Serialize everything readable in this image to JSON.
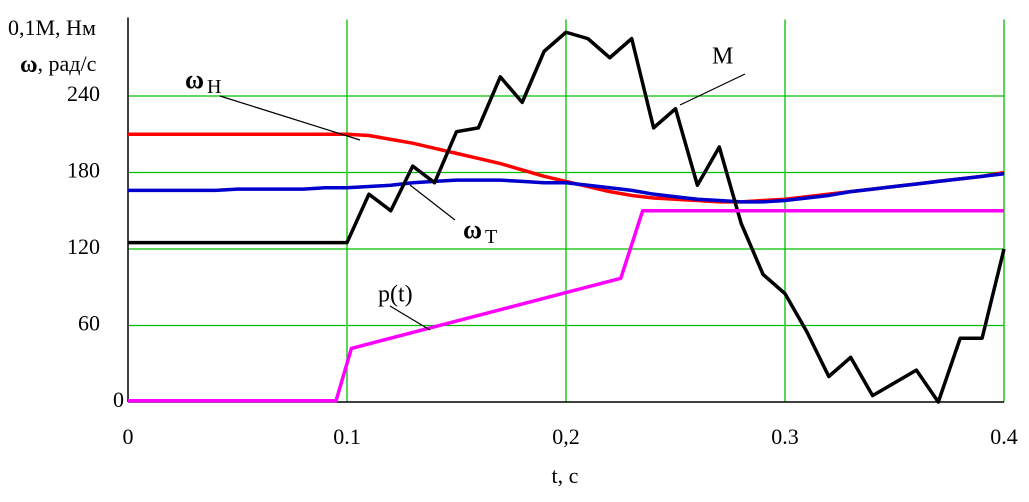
{
  "chart_data": {
    "type": "line",
    "x_label": "t, c",
    "y_label_lines": [
      "0,1M, Hм",
      {
        "symbol": "ω",
        "text": ", рад/с"
      }
    ],
    "x": [
      0,
      0.01,
      0.02,
      0.03,
      0.04,
      0.05,
      0.06,
      0.07,
      0.08,
      0.09,
      0.1,
      0.11,
      0.12,
      0.13,
      0.14,
      0.15,
      0.16,
      0.17,
      0.18,
      0.19,
      0.2,
      0.21,
      0.22,
      0.23,
      0.24,
      0.25,
      0.26,
      0.27,
      0.28,
      0.29,
      0.3,
      0.31,
      0.32,
      0.33,
      0.34,
      0.35,
      0.36,
      0.37,
      0.38,
      0.39,
      0.4
    ],
    "series": [
      {
        "name": "ω_H",
        "color": "#ff0000",
        "values": [
          210,
          210,
          210,
          210,
          210,
          210,
          210,
          210,
          210,
          210,
          210,
          209,
          206,
          203,
          199,
          195,
          191,
          187,
          182,
          177,
          173,
          169,
          165,
          162,
          160,
          159,
          158,
          157,
          157,
          158,
          159,
          161,
          163,
          165,
          167,
          169,
          171,
          173,
          175,
          177,
          180
        ]
      },
      {
        "name": "ω_T",
        "color": "#0000cc",
        "values": [
          166,
          166,
          166,
          166,
          166,
          167,
          167,
          167,
          167,
          168,
          168,
          169,
          170,
          172,
          173,
          174,
          174,
          174,
          173,
          172,
          172,
          170,
          168,
          166,
          163,
          161,
          159,
          158,
          157,
          157,
          158,
          160,
          162,
          165,
          167,
          169,
          171,
          173,
          175,
          177,
          179
        ]
      },
      {
        "name": "M",
        "color": "#000000",
        "values": [
          125,
          125,
          125,
          125,
          125,
          125,
          125,
          125,
          125,
          125,
          125,
          163,
          150,
          185,
          172,
          212,
          215,
          255,
          235,
          275,
          290,
          285,
          270,
          285,
          215,
          230,
          170,
          200,
          140,
          100,
          85,
          55,
          20,
          35,
          5,
          15,
          25,
          0,
          50,
          50,
          120
        ]
      },
      {
        "name": "p(t)",
        "color": "#ff00ff",
        "x": [
          0,
          0.095,
          0.102,
          0.225,
          0.235,
          0.4
        ],
        "values": [
          1,
          1,
          42,
          97,
          150,
          150
        ]
      }
    ],
    "annotations": [
      {
        "symbol": "ω",
        "sub": "Н"
      },
      {
        "symbol": "ω",
        "sub": "Т"
      },
      "M",
      "p(t)"
    ],
    "xlim": [
      0,
      0.4
    ],
    "xticks": [
      0,
      0.1,
      {
        "value": 0.2,
        "label": "0,2"
      },
      0.3,
      0.4
    ],
    "ylim": [
      0,
      300
    ],
    "yticks": [
      0,
      60,
      120,
      180,
      240
    ],
    "grid": true
  }
}
